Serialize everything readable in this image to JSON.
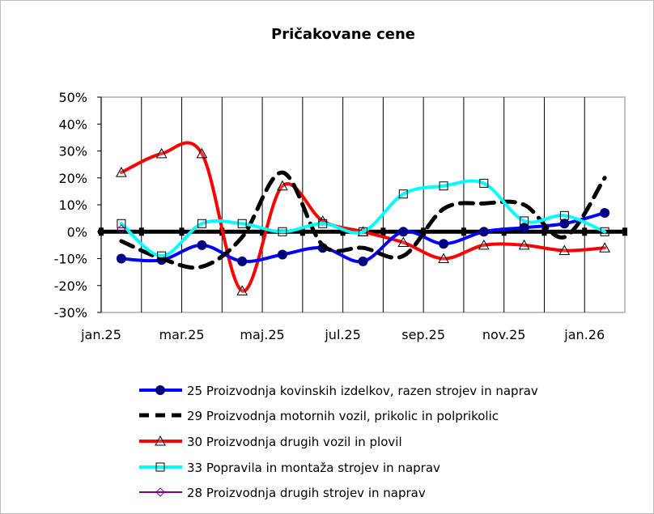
{
  "chart_data": {
    "type": "line",
    "title": "Pričakovane cene",
    "xlabel": "",
    "ylabel": "",
    "ylim": [
      -30,
      50
    ],
    "yticks": [
      -30,
      -20,
      -10,
      0,
      10,
      20,
      30,
      40,
      50
    ],
    "ytick_labels": [
      "-30%",
      "-20%",
      "-10%",
      "0%",
      "10%",
      "20%",
      "30%",
      "40%",
      "50%"
    ],
    "categories": [
      "jan.25",
      "feb.25",
      "mar.25",
      "apr.25",
      "maj.25",
      "jun.25",
      "jul.25",
      "avg.25",
      "sep.25",
      "okt.25",
      "nov.25",
      "dec.25",
      "jan.26"
    ],
    "xtick_labels": [
      "jan.25",
      "mar.25",
      "maj.25",
      "jul.25",
      "sep.25",
      "nov.25",
      "jan.26"
    ],
    "grid": "vertical",
    "legend_position": "bottom",
    "series": [
      {
        "name": "25 Proizvodnja kovinskih izdelkov, razen strojev in naprav",
        "color": "#0000ff",
        "marker": "circle",
        "marker_color": "#000080",
        "dash": "solid",
        "values": [
          -10,
          -10.5,
          -5,
          -11,
          -8.5,
          -6,
          -11,
          0,
          -4.5,
          0,
          1.5,
          3,
          7
        ]
      },
      {
        "name": "29 Proizvodnja motornih vozil, prikolic in polprikolic",
        "color": "#000000",
        "marker": "none",
        "dash": "dashed",
        "values": [
          -3.5,
          -10,
          -13,
          -2,
          22,
          -5,
          -6,
          -9,
          8.5,
          10.5,
          10,
          -2,
          20
        ]
      },
      {
        "name": "30 Proizvodnja drugih vozil in plovil",
        "color": "#ff0000",
        "marker": "triangle",
        "dash": "solid",
        "values": [
          22,
          29,
          29,
          -22,
          17,
          4,
          0,
          -4,
          -10,
          -5,
          -5,
          -7,
          -6
        ]
      },
      {
        "name": "33 Popravila in montaža strojev in naprav",
        "color": "#00ffff",
        "marker": "square",
        "dash": "solid",
        "values": [
          3,
          -9,
          3,
          3,
          0,
          3,
          0,
          14,
          17,
          18,
          4,
          6,
          0
        ]
      },
      {
        "name": "28 Proizvodnja drugih strojev in naprav",
        "color": "#800080",
        "marker": "diamond",
        "dash": "solid",
        "values": [
          1,
          null,
          null,
          null,
          null,
          null,
          null,
          null,
          null,
          null,
          null,
          null,
          null
        ]
      }
    ]
  }
}
